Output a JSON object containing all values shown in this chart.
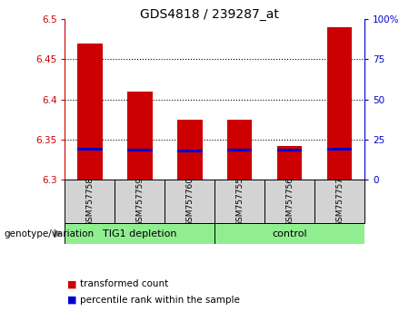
{
  "title": "GDS4818 / 239287_at",
  "samples": [
    "GSM757758",
    "GSM757759",
    "GSM757760",
    "GSM757755",
    "GSM757756",
    "GSM757757"
  ],
  "transformed_counts": [
    6.47,
    6.41,
    6.375,
    6.375,
    6.342,
    6.49
  ],
  "percentile_values": [
    6.338,
    6.337,
    6.336,
    6.337,
    6.337,
    6.338
  ],
  "bar_bottom": 6.3,
  "ylim": [
    6.3,
    6.5
  ],
  "yticks": [
    6.3,
    6.35,
    6.4,
    6.45,
    6.5
  ],
  "right_yticks": [
    0,
    25,
    50,
    75,
    100
  ],
  "right_ylim": [
    0,
    100
  ],
  "bar_color": "#cc0000",
  "percentile_color": "#0000cc",
  "bar_width": 0.5,
  "percentile_bar_height": 0.004,
  "tick_color_left": "#cc0000",
  "tick_color_right": "#0000cc",
  "legend_transformed": "transformed count",
  "legend_percentile": "percentile rank within the sample",
  "genotype_label": "genotype/variation",
  "sample_bg_color": "#d3d3d3",
  "green_color": "#90EE90"
}
